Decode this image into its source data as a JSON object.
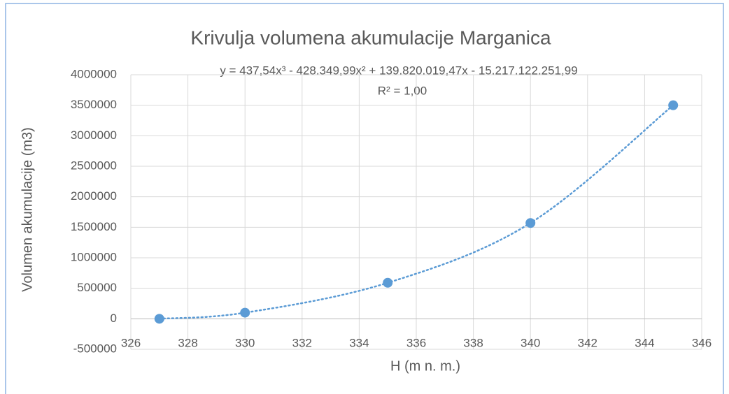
{
  "chart_data": {
    "type": "scatter",
    "title": "Krivulja volumena akumulacije Marganica",
    "annotations": [
      "y = 437,54x³ - 428.349,99x² + 139.820.019,47x - 15.217.122.251,99",
      "R² = 1,00"
    ],
    "x_label": "H (m n. m.)",
    "y_label": "Volumen akumulacije (m3)",
    "x": [
      327,
      330,
      335,
      340,
      345
    ],
    "values": [
      0,
      100000,
      590000,
      1570000,
      3500000
    ],
    "color": "#5b9bd5",
    "trendline": "dotted",
    "xlim": [
      326,
      346
    ],
    "xticks": [
      326,
      328,
      330,
      332,
      334,
      336,
      338,
      340,
      342,
      344,
      346
    ],
    "ylim": [
      -500000,
      4000000
    ],
    "yticks": [
      -500000,
      0,
      500000,
      1000000,
      1500000,
      2000000,
      2500000,
      3000000,
      3500000,
      4000000
    ],
    "grid": true
  }
}
